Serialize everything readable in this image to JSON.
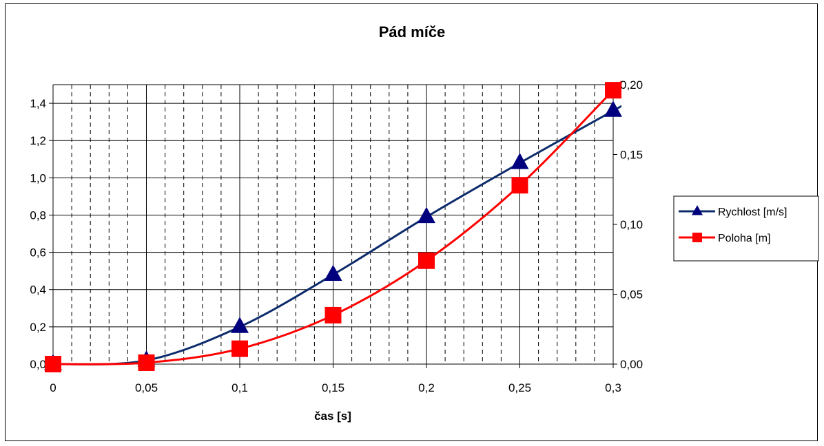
{
  "chart_data": {
    "type": "line",
    "title": "Pád míče",
    "xlabel": "čas [s]",
    "ylabel": "",
    "x": [
      0,
      0.05,
      0.1,
      0.15,
      0.2,
      0.25,
      0.3
    ],
    "x_tick_labels": [
      "0",
      "0,05",
      "0,1",
      "0,15",
      "0,2",
      "0,25",
      "0,3"
    ],
    "xlim": [
      0,
      0.3
    ],
    "ylim_left": [
      0,
      1.5
    ],
    "y_left_ticks": [
      0,
      0.2,
      0.4,
      0.6,
      0.8,
      1.0,
      1.2,
      1.4
    ],
    "y_left_tick_labels": [
      "0,0",
      "0,2",
      "0,4",
      "0,6",
      "0,8",
      "1,0",
      "1,2",
      "1,4"
    ],
    "ylim_right": [
      0,
      0.2
    ],
    "y_right_ticks": [
      0,
      0.05,
      0.1,
      0.15,
      0.2
    ],
    "y_right_tick_labels": [
      "0,00",
      "0,05",
      "0,10",
      "0,15",
      "0,20"
    ],
    "series": [
      {
        "name": "Rychlost [m/s]",
        "axis": "left",
        "marker": "triangle",
        "color": "#0d2c6c",
        "marker_color": "#00007f",
        "values": [
          0.0,
          0.02,
          0.2,
          0.48,
          0.79,
          1.08,
          1.36
        ]
      },
      {
        "name": "Poloha [m]",
        "axis": "right",
        "marker": "square",
        "color": "#ff0000",
        "marker_color": "#ff0000",
        "values": [
          0.0,
          0.001,
          0.011,
          0.035,
          0.074,
          0.128,
          0.196
        ]
      }
    ],
    "grid": true,
    "legend_position": "right"
  }
}
